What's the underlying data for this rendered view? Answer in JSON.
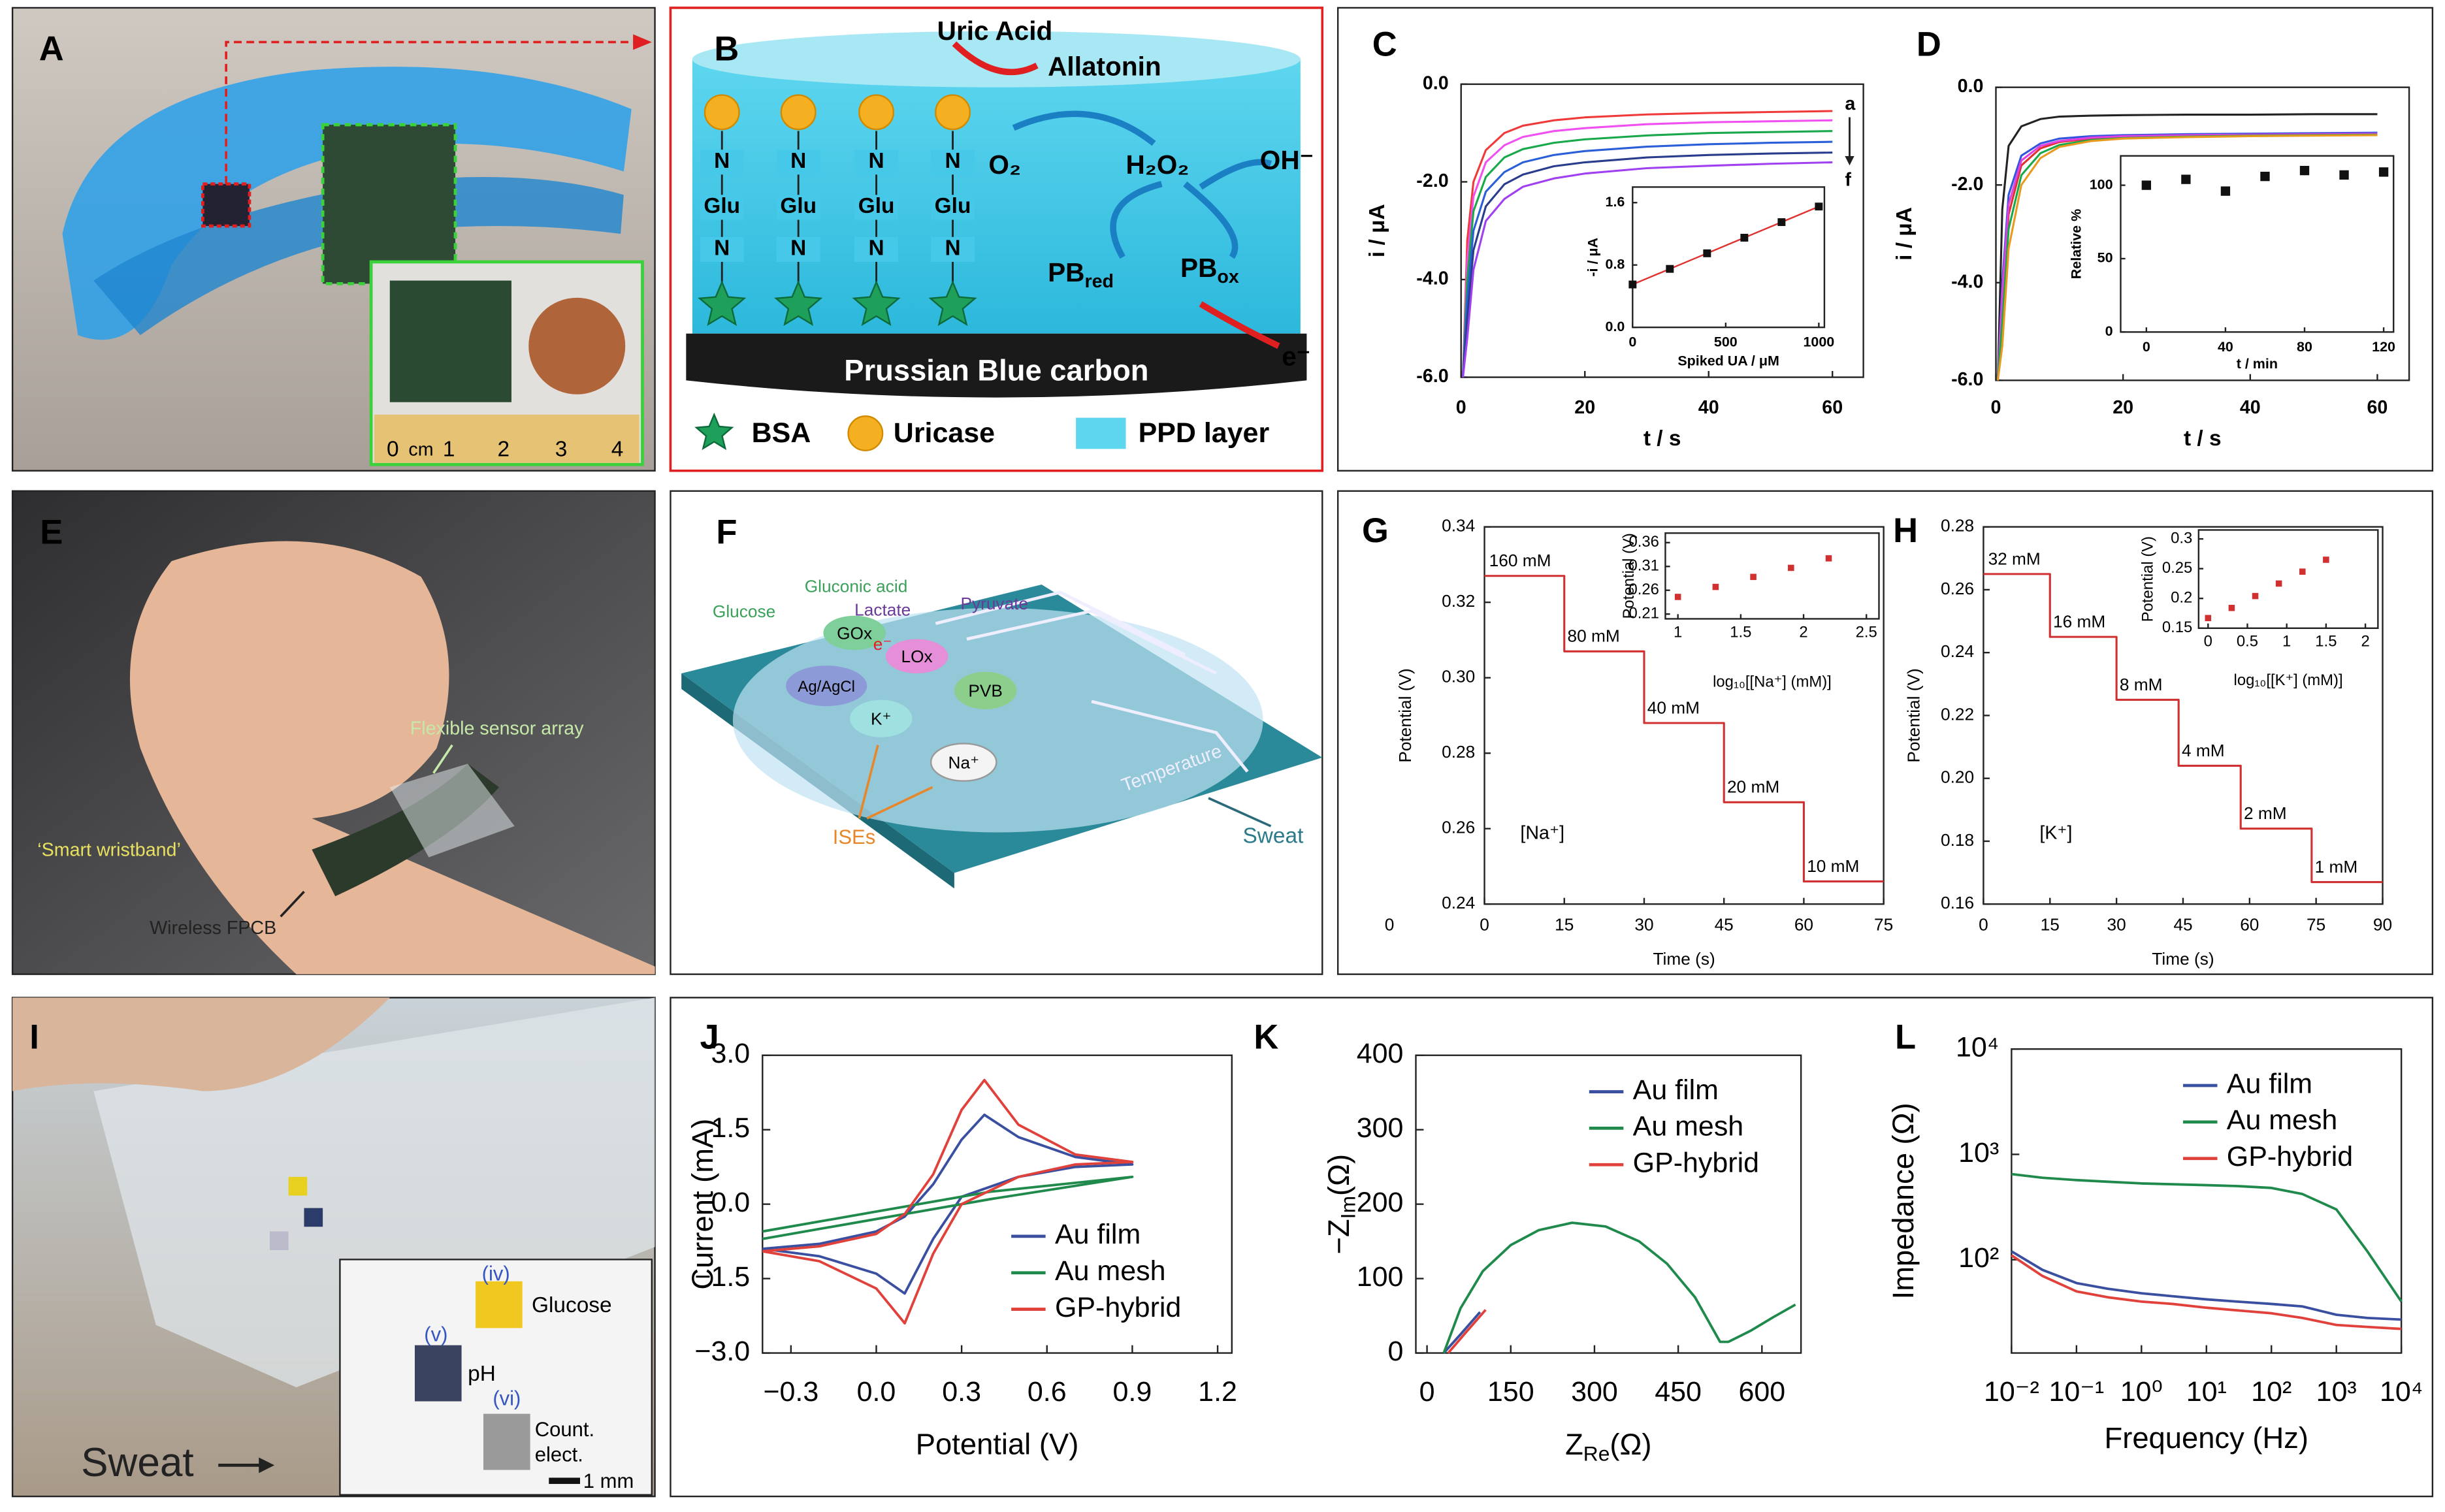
{
  "panel_labels": [
    "A",
    "B",
    "C",
    "D",
    "E",
    "F",
    "G",
    "H",
    "I",
    "J",
    "K",
    "L"
  ],
  "panel_a": {
    "ruler": [
      "0",
      "cm",
      "1",
      "2",
      "3",
      "4"
    ]
  },
  "panel_b": {
    "uric_acid": "Uric Acid",
    "allatonin": "Allatonin",
    "o2": "O₂",
    "h2o2": "H₂O₂",
    "oh": "OH⁻",
    "pb_red": [
      "PB",
      "red"
    ],
    "pb_ox": [
      "PB",
      "ox"
    ],
    "electron": "e⁻",
    "chain": [
      "N",
      "Glu",
      "N"
    ],
    "base": "Prussian Blue carbon",
    "legend": [
      "BSA",
      "Uricase",
      "PPD layer"
    ]
  },
  "panel_e": {
    "sensor": "Flexible sensor array",
    "wristband": "‘Smart wristband’",
    "fpcb": "Wireless FPCB"
  },
  "panel_f": {
    "glucose": "Glucose",
    "gluconic": "Gluconic acid",
    "lactate": "Lactate",
    "pyruvate": "Pyruvate",
    "electron": "e⁻",
    "gox": "GOx",
    "lox": "LOx",
    "ref": "Ag/AgCl",
    "k": "K⁺",
    "pvb": "PVB",
    "na": "Na⁺",
    "ises": "ISEs",
    "temperature": "Temperature",
    "sweat": "Sweat"
  },
  "panel_i": {
    "sweat": "Sweat",
    "inset": [
      "(iv)",
      "Glucose",
      "(v)",
      "pH",
      "(vi)",
      "Count.",
      "elect.",
      "1 mm"
    ]
  },
  "chart_data": [
    {
      "type": "line",
      "xlabel": "t / s",
      "ylabel": "i / μA",
      "x": [
        0.3,
        1,
        2,
        4,
        7,
        10,
        15,
        20,
        30,
        40,
        50,
        60
      ],
      "series": [
        {
          "color": "#f03a3a",
          "values": [
            -6.0,
            -3.2,
            -2.0,
            -1.35,
            -1.0,
            -0.85,
            -0.74,
            -0.68,
            -0.62,
            -0.59,
            -0.57,
            -0.55
          ]
        },
        {
          "color": "#f050f0",
          "values": [
            -6.0,
            -3.6,
            -2.3,
            -1.6,
            -1.25,
            -1.08,
            -0.96,
            -0.9,
            -0.82,
            -0.78,
            -0.76,
            -0.74
          ]
        },
        {
          "color": "#19a84b",
          "values": [
            -6.0,
            -4.0,
            -2.6,
            -1.9,
            -1.5,
            -1.33,
            -1.2,
            -1.13,
            -1.05,
            -1.0,
            -0.98,
            -0.96
          ]
        },
        {
          "color": "#2a5fd8",
          "values": [
            -6.0,
            -4.4,
            -3.0,
            -2.2,
            -1.8,
            -1.6,
            -1.45,
            -1.37,
            -1.28,
            -1.23,
            -1.2,
            -1.18
          ]
        },
        {
          "color": "#2a3c8c",
          "values": [
            -6.0,
            -4.8,
            -3.4,
            -2.5,
            -2.05,
            -1.85,
            -1.68,
            -1.6,
            -1.5,
            -1.45,
            -1.42,
            -1.4
          ]
        },
        {
          "color": "#a040f0",
          "values": [
            -6.0,
            -5.2,
            -3.8,
            -2.8,
            -2.35,
            -2.1,
            -1.93,
            -1.83,
            -1.72,
            -1.67,
            -1.63,
            -1.6
          ]
        }
      ],
      "end_labels": [
        "a",
        "f"
      ],
      "xlim": [
        0,
        65
      ],
      "ylim": [
        -6,
        0
      ],
      "xticks": [
        0,
        20,
        40,
        60
      ],
      "yticks": [
        {
          "value": 0,
          "label": "0.0"
        },
        {
          "value": -2,
          "label": "-2.0"
        },
        {
          "value": -4,
          "label": "-4.0"
        },
        {
          "value": -6,
          "label": "-6.0"
        }
      ]
    },
    {
      "type": "scatter",
      "xlabel": "Spiked UA / μM",
      "ylabel": "-i / μA",
      "x": [
        0,
        200,
        400,
        600,
        800,
        1000
      ],
      "series": [
        {
          "color": "#111111",
          "line_color": "#e03030",
          "values": [
            0.55,
            0.75,
            0.95,
            1.15,
            1.35,
            1.55
          ]
        }
      ],
      "xlim": [
        0,
        1030
      ],
      "ylim": [
        0,
        1.8
      ],
      "xticks": [
        0,
        500,
        1000
      ],
      "yticks": [
        {
          "value": 0,
          "label": "0.0"
        },
        0.8,
        1.6
      ]
    },
    {
      "type": "line",
      "xlabel": "t / s",
      "ylabel": "i / μA",
      "x": [
        0.3,
        1,
        2,
        4,
        7,
        10,
        15,
        20,
        30,
        40,
        50,
        60
      ],
      "series": [
        {
          "color": "#222222",
          "values": [
            -6.0,
            -2.5,
            -1.2,
            -0.8,
            -0.65,
            -0.6,
            -0.58,
            -0.57,
            -0.56,
            -0.56,
            -0.55,
            -0.55
          ]
        },
        {
          "color": "#3355dd",
          "values": [
            -6.0,
            -4.0,
            -2.2,
            -1.4,
            -1.15,
            -1.05,
            -1.0,
            -0.98,
            -0.96,
            -0.95,
            -0.94,
            -0.93
          ]
        },
        {
          "color": "#e03030",
          "values": [
            -6.0,
            -4.5,
            -2.6,
            -1.6,
            -1.25,
            -1.12,
            -1.05,
            -1.02,
            -1.0,
            -0.98,
            -0.97,
            -0.96
          ]
        },
        {
          "color": "#e040e0",
          "values": [
            -6.0,
            -4.2,
            -2.4,
            -1.5,
            -1.2,
            -1.1,
            -1.03,
            -1.0,
            -0.98,
            -0.97,
            -0.96,
            -0.95
          ]
        },
        {
          "color": "#19a84b",
          "values": [
            -6.0,
            -4.8,
            -2.9,
            -1.8,
            -1.35,
            -1.18,
            -1.08,
            -1.04,
            -1.01,
            -0.99,
            -0.98,
            -0.97
          ]
        },
        {
          "color": "#e89a20",
          "values": [
            -6.0,
            -5.3,
            -3.3,
            -2.0,
            -1.45,
            -1.22,
            -1.1,
            -1.05,
            -1.02,
            -1.0,
            -0.99,
            -0.98
          ]
        }
      ],
      "xlim": [
        0,
        65
      ],
      "ylim": [
        -6,
        0
      ],
      "xticks": [
        0,
        20,
        40,
        60
      ],
      "yticks": [
        {
          "value": 0,
          "label": "0.0"
        },
        {
          "value": -2,
          "label": "-2.0"
        },
        {
          "value": -4,
          "label": "-4.0"
        },
        {
          "value": -6,
          "label": "-6.0"
        }
      ]
    },
    {
      "type": "scatter",
      "xlabel": "t / min",
      "ylabel": "Relative %",
      "x": [
        0,
        20,
        40,
        60,
        80,
        100,
        120
      ],
      "series": [
        {
          "color": "#111111",
          "values": [
            100,
            104,
            96,
            106,
            110,
            107,
            109
          ]
        }
      ],
      "xlim": [
        -13,
        125
      ],
      "ylim": [
        0,
        120
      ],
      "xticks": [
        0,
        40,
        80,
        120
      ],
      "yticks": [
        0,
        50,
        100
      ]
    },
    {
      "type": "line",
      "xlabel": "Time (s)",
      "ylabel": "Potential (V)",
      "note": "[Na⁺]",
      "stray_label": "0",
      "series": [
        {
          "color": "#d03030",
          "x": [
            0,
            15,
            15,
            30,
            30,
            45,
            45,
            60,
            60,
            75
          ],
          "values": [
            0.327,
            0.327,
            0.307,
            0.307,
            0.288,
            0.288,
            0.267,
            0.267,
            0.246,
            0.246
          ]
        }
      ],
      "step_labels": [
        "160 mM",
        "80 mM",
        "40 mM",
        "20 mM",
        "10 mM"
      ],
      "xlim": [
        0,
        75
      ],
      "ylim": [
        0.24,
        0.34
      ],
      "xticks": [
        0,
        15,
        30,
        45,
        60,
        75
      ],
      "yticks": [
        0.24,
        0.26,
        0.28,
        {
          "value": 0.3,
          "label": "0.30"
        },
        0.32,
        0.34
      ]
    },
    {
      "type": "scatter",
      "xlabel": "log₁₀[[Na⁺] (mM)]",
      "ylabel": "Potential (V)",
      "x": [
        1,
        1.3,
        1.6,
        1.9,
        2.2
      ],
      "series": [
        {
          "color": "#d03030",
          "values": [
            0.246,
            0.267,
            0.288,
            0.307,
            0.327
          ]
        }
      ],
      "xlim": [
        0.9,
        2.6
      ],
      "ylim": [
        0.2,
        0.38
      ],
      "xticks": [
        1,
        1.5,
        2,
        2.5
      ],
      "yticks": [
        0.21,
        0.26,
        0.31,
        0.36
      ]
    },
    {
      "type": "line",
      "xlabel": "Time (s)",
      "ylabel": "Potential (V)",
      "note": "[K⁺]",
      "series": [
        {
          "color": "#d03030",
          "x": [
            0,
            15,
            15,
            30,
            30,
            44,
            44,
            58,
            58,
            74,
            74,
            90
          ],
          "values": [
            0.265,
            0.265,
            0.245,
            0.245,
            0.225,
            0.225,
            0.204,
            0.204,
            0.184,
            0.184,
            0.167,
            0.167
          ]
        }
      ],
      "step_labels": [
        "32 mM",
        "16 mM",
        "8 mM",
        "4 mM",
        "2 mM",
        "1 mM"
      ],
      "xlim": [
        0,
        90
      ],
      "ylim": [
        0.16,
        0.28
      ],
      "xticks": [
        0,
        15,
        30,
        45,
        60,
        75,
        90
      ],
      "yticks": [
        {
          "value": 0.16,
          "label": "0.16"
        },
        {
          "value": 0.18,
          "label": "0.18"
        },
        {
          "value": 0.2,
          "label": "0.20"
        },
        0.22,
        0.24,
        0.26,
        0.28
      ]
    },
    {
      "type": "scatter",
      "xlabel": "log₁₀[[K⁺] (mM)]",
      "ylabel": "Potential (V)",
      "x": [
        0,
        0.3,
        0.6,
        0.9,
        1.2,
        1.5
      ],
      "series": [
        {
          "color": "#d03030",
          "values": [
            0.167,
            0.184,
            0.204,
            0.225,
            0.245,
            0.265
          ]
        }
      ],
      "xlim": [
        -0.12,
        2.16
      ],
      "ylim": [
        0.15,
        0.315
      ],
      "xticks": [
        0,
        0.5,
        1,
        1.5,
        2
      ],
      "yticks": [
        0.15,
        0.2,
        0.25,
        0.3
      ]
    },
    {
      "type": "line",
      "xlabel": "Potential (V)",
      "ylabel": "Current (mA)",
      "legend": "lower right",
      "series": [
        {
          "name": "Au film",
          "color": "#3a4fa0",
          "x": [
            -0.4,
            -0.2,
            0,
            0.1,
            0.2,
            0.3,
            0.38,
            0.5,
            0.7,
            0.9,
            0.7,
            0.5,
            0.3,
            0.2,
            0.1,
            0,
            -0.2,
            -0.4
          ],
          "values": [
            -0.9,
            -0.8,
            -0.55,
            -0.25,
            0.4,
            1.3,
            1.8,
            1.35,
            0.95,
            0.8,
            0.75,
            0.55,
            0.15,
            -0.7,
            -1.8,
            -1.4,
            -1.05,
            -0.9
          ]
        },
        {
          "name": "Au mesh",
          "color": "#1f8a4c",
          "x": [
            -0.4,
            0,
            0.4,
            0.9,
            0.4,
            0,
            -0.4
          ],
          "values": [
            -0.7,
            -0.3,
            0.1,
            0.55,
            0.25,
            -0.15,
            -0.55
          ]
        },
        {
          "name": "GP-hybrid",
          "color": "#e0413a",
          "x": [
            -0.4,
            -0.2,
            0,
            0.1,
            0.2,
            0.3,
            0.38,
            0.5,
            0.7,
            0.9,
            0.7,
            0.5,
            0.3,
            0.2,
            0.1,
            0,
            -0.2,
            -0.4
          ],
          "values": [
            -0.95,
            -0.85,
            -0.6,
            -0.2,
            0.6,
            1.9,
            2.5,
            1.6,
            1.0,
            0.85,
            0.8,
            0.55,
            0.0,
            -1.0,
            -2.4,
            -1.7,
            -1.15,
            -0.95
          ]
        }
      ],
      "xlim": [
        -0.4,
        1.25
      ],
      "ylim": [
        -3,
        3
      ],
      "xticks": [
        {
          "value": -0.3,
          "label": "−0.3"
        },
        {
          "value": 0,
          "label": "0.0"
        },
        0.3,
        0.6,
        0.9,
        1.2
      ],
      "yticks": [
        {
          "value": 3,
          "label": "3.0"
        },
        1.5,
        {
          "value": 0,
          "label": "0.0"
        },
        {
          "value": -1.5,
          "label": "−1.5"
        },
        {
          "value": -3,
          "label": "−3.0"
        }
      ]
    },
    {
      "type": "line",
      "xlabel": [
        "Z",
        "Re",
        "(Ω)"
      ],
      "ylabel": [
        "−Z",
        "Im",
        "(Ω)"
      ],
      "legend": "upper right",
      "series": [
        {
          "name": "Au film",
          "color": "#3a4fa0",
          "x": [
            30,
            60,
            95
          ],
          "values": [
            0,
            25,
            55
          ]
        },
        {
          "name": "Au mesh",
          "color": "#1f8a4c",
          "x": [
            30,
            60,
            100,
            150,
            200,
            260,
            320,
            380,
            430,
            480,
            510,
            525,
            540,
            580,
            620,
            660
          ],
          "values": [
            0,
            60,
            110,
            145,
            165,
            175,
            170,
            150,
            120,
            75,
            35,
            15,
            15,
            30,
            48,
            65
          ]
        },
        {
          "name": "GP-hybrid",
          "color": "#e0413a",
          "x": [
            38,
            70,
            105
          ],
          "values": [
            0,
            28,
            58
          ]
        }
      ],
      "xlim": [
        -20,
        670
      ],
      "ylim": [
        0,
        400
      ],
      "xticks": [
        0,
        150,
        300,
        450,
        600
      ],
      "yticks": [
        0,
        100,
        200,
        300,
        400
      ]
    },
    {
      "type": "line",
      "xlabel": "Frequency (Hz)",
      "ylabel": "Impedance (Ω)",
      "legend": "upper right",
      "xlog": true,
      "ylog": true,
      "x": [
        0.01,
        0.03,
        0.1,
        0.3,
        1,
        3,
        10,
        30,
        100,
        300,
        1000,
        3000,
        10000
      ],
      "series": [
        {
          "name": "Au film",
          "color": "#3a4fa0",
          "values": [
            120,
            80,
            60,
            53,
            48,
            45,
            42,
            40,
            38,
            36,
            30,
            28,
            27
          ]
        },
        {
          "name": "Au mesh",
          "color": "#1f8a4c",
          "values": [
            650,
            600,
            570,
            550,
            530,
            520,
            510,
            500,
            480,
            420,
            300,
            120,
            40
          ]
        },
        {
          "name": "GP-hybrid",
          "color": "#e0413a",
          "values": [
            110,
            70,
            50,
            44,
            40,
            38,
            35,
            33,
            31,
            28,
            24,
            23,
            22
          ]
        }
      ],
      "xlim": [
        0.01,
        10000
      ],
      "ylim": [
        13,
        10000
      ],
      "xticks": [
        {
          "value": 0.01,
          "label": "10⁻²"
        },
        {
          "value": 0.1,
          "label": "10⁻¹"
        },
        {
          "value": 1,
          "label": "10⁰"
        },
        {
          "value": 10,
          "label": "10¹"
        },
        {
          "value": 100,
          "label": "10²"
        },
        {
          "value": 1000,
          "label": "10³"
        },
        {
          "value": 10000,
          "label": "10⁴"
        }
      ],
      "yticks": [
        {
          "value": 100,
          "label": "10²"
        },
        {
          "value": 1000,
          "label": "10³"
        },
        {
          "value": 10000,
          "label": "10⁴"
        }
      ]
    }
  ]
}
